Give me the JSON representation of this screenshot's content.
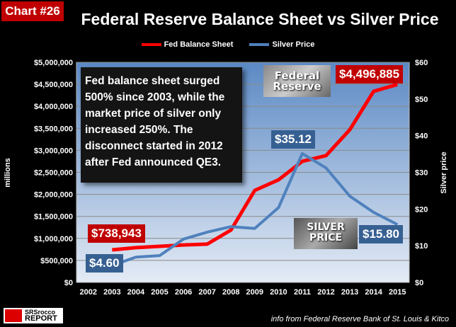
{
  "badge": "Chart #26",
  "chart_data": {
    "type": "line",
    "title": "Federal Reserve Balance Sheet vs Silver Price",
    "categories": [
      "2002",
      "2003",
      "2004",
      "2005",
      "2006",
      "2007",
      "2008",
      "2009",
      "2010",
      "2011",
      "2012",
      "2013",
      "2014",
      "2015"
    ],
    "series": [
      {
        "name": "Fed Balance Sheet",
        "axis": "left",
        "color": "#ff0000",
        "values": [
          null,
          738943,
          790000,
          820000,
          850000,
          870000,
          1190000,
          2090000,
          2330000,
          2750000,
          2880000,
          3470000,
          4340000,
          4496885
        ]
      },
      {
        "name": "Silver Price",
        "axis": "right",
        "color": "#4f81bd",
        "values": [
          null,
          4.6,
          6.9,
          7.3,
          11.8,
          13.7,
          15.2,
          14.7,
          20.4,
          35.12,
          31.2,
          23.5,
          19.1,
          15.8
        ]
      }
    ],
    "ylabel": "millions",
    "ylabel_right": "Silver price",
    "ylim": [
      0,
      5000000
    ],
    "ylim_right": [
      0,
      60
    ],
    "yticks": [
      "$0",
      "$500,000",
      "$1,000,000",
      "$1,500,000",
      "$2,000,000",
      "$2,500,000",
      "$3,000,000",
      "$3,500,000",
      "$4,000,000",
      "$4,500,000",
      "$5,000,000"
    ],
    "yticks_right": [
      "$0",
      "$10",
      "$20",
      "$30",
      "$40",
      "$50",
      "$60"
    ],
    "legend": "top",
    "grid": true,
    "annotations": {
      "fed_start": "$738,943",
      "fed_end": "$4,496,885",
      "silver_start": "$4.60",
      "silver_peak": "$35.12",
      "silver_end": "$15.80"
    }
  },
  "note": "Fed balance sheet surged 500% since 2003, while the market price of silver only increased 250%.  The disconnect started in 2012 after Fed announced QE3.",
  "images": {
    "fed": "Federal Reserve",
    "silver_1": "SILVER",
    "silver_2": "PRICE"
  },
  "logo": {
    "top": "SRSrocco",
    "bottom": "REPORT"
  },
  "source": "info from Federal Reserve Bank of St. Louis & Kitco"
}
